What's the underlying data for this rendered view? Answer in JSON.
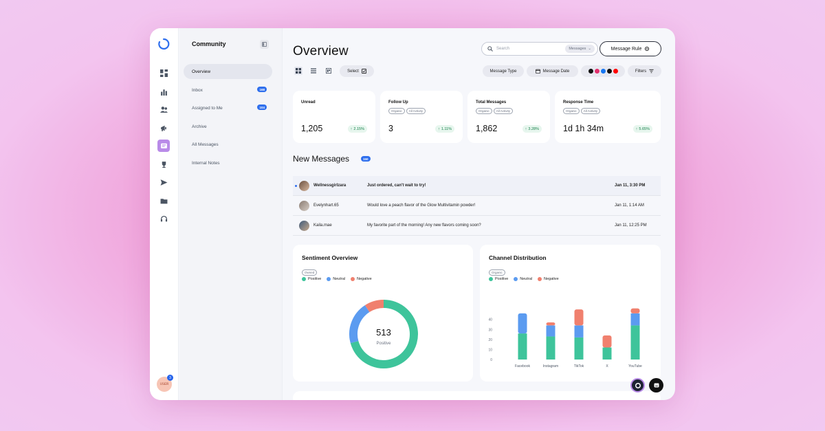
{
  "sidebar": {
    "rail_icons": [
      "dashboard-icon",
      "bar-chart-icon",
      "users-icon",
      "megaphone-icon",
      "inbox-icon",
      "trophy-icon",
      "send-icon",
      "folder-icon",
      "headset-icon"
    ],
    "user_initials": "ᴜsᴇʀ",
    "user_badge": "3"
  },
  "subnav": {
    "title": "Community",
    "items": [
      {
        "label": "Overview",
        "count": ""
      },
      {
        "label": "Inbox",
        "count": "168"
      },
      {
        "label": "Assigned to Me",
        "count": "104"
      },
      {
        "label": "Archive",
        "count": ""
      },
      {
        "label": "All Messages",
        "count": ""
      },
      {
        "label": "Internal Notes",
        "count": ""
      }
    ]
  },
  "header": {
    "title": "Overview",
    "search_placeholder": "Search",
    "search_scope": "Messages",
    "message_rule": "Message Rule"
  },
  "toolbar": {
    "select": "Select",
    "message_type": "Message Type",
    "message_date": "Message Date",
    "filters": "Filters"
  },
  "stats": [
    {
      "label": "Unread",
      "tags": [],
      "value": "1,205",
      "delta": "2.15%"
    },
    {
      "label": "Follow Up",
      "tags": [
        "Organic",
        "All Activity"
      ],
      "value": "3",
      "delta": "1.11%"
    },
    {
      "label": "Total Messages",
      "tags": [
        "Organic",
        "All Activity"
      ],
      "value": "1,862",
      "delta": "3.28%"
    },
    {
      "label": "Response Time",
      "tags": [
        "Organic",
        "All Activity"
      ],
      "value": "1d 1h 34m",
      "delta": "5.65%"
    }
  ],
  "new_messages": {
    "title": "New Messages",
    "count": "150",
    "rows": [
      {
        "user": "Wellnessgirlzara",
        "text": "Just ordered, can't wait to try!",
        "date": "Jan 11, 3:30 PM",
        "unread": true
      },
      {
        "user": "Evelynhart.65",
        "text": "Would love a peach flavor of the Glow Multivitamin powder!",
        "date": "Jan 11, 1:14 AM",
        "unread": false
      },
      {
        "user": "Kaila.mae",
        "text": "My favorite part of the morning! Any new flavors coming soon?",
        "date": "Jan 11, 12:25 PM",
        "unread": false
      }
    ]
  },
  "sentiment": {
    "title": "Sentiment Overview",
    "tag": "Owned",
    "legend": [
      "Positive",
      "Neutral",
      "Negative"
    ],
    "center_value": "513",
    "center_label": "Positive"
  },
  "channel": {
    "title": "Channel Distribution",
    "tag": "Organic",
    "legend": [
      "Positive",
      "Neutral",
      "Negative"
    ]
  },
  "colors": {
    "positive": "#3ec49b",
    "neutral": "#5b9bf0",
    "negative": "#f0806e",
    "accent": "#b98be8"
  },
  "chart_data": [
    {
      "type": "pie",
      "title": "Sentiment Overview",
      "categories": [
        "Positive",
        "Neutral",
        "Negative"
      ],
      "values": [
        513,
        146,
        66
      ]
    },
    {
      "type": "bar",
      "title": "Channel Distribution",
      "categories": [
        "Facebook",
        "Instagram",
        "TikTok",
        "X",
        "YouTube"
      ],
      "series": [
        {
          "name": "Positive",
          "values": [
            26,
            23,
            22,
            12,
            34
          ]
        },
        {
          "name": "Neutral",
          "values": [
            20,
            11,
            12,
            0,
            12
          ]
        },
        {
          "name": "Negative",
          "values": [
            0,
            3,
            16,
            12,
            5
          ]
        }
      ],
      "yticks": [
        0,
        10,
        20,
        30,
        40
      ],
      "ylim": [
        0,
        48
      ]
    }
  ]
}
